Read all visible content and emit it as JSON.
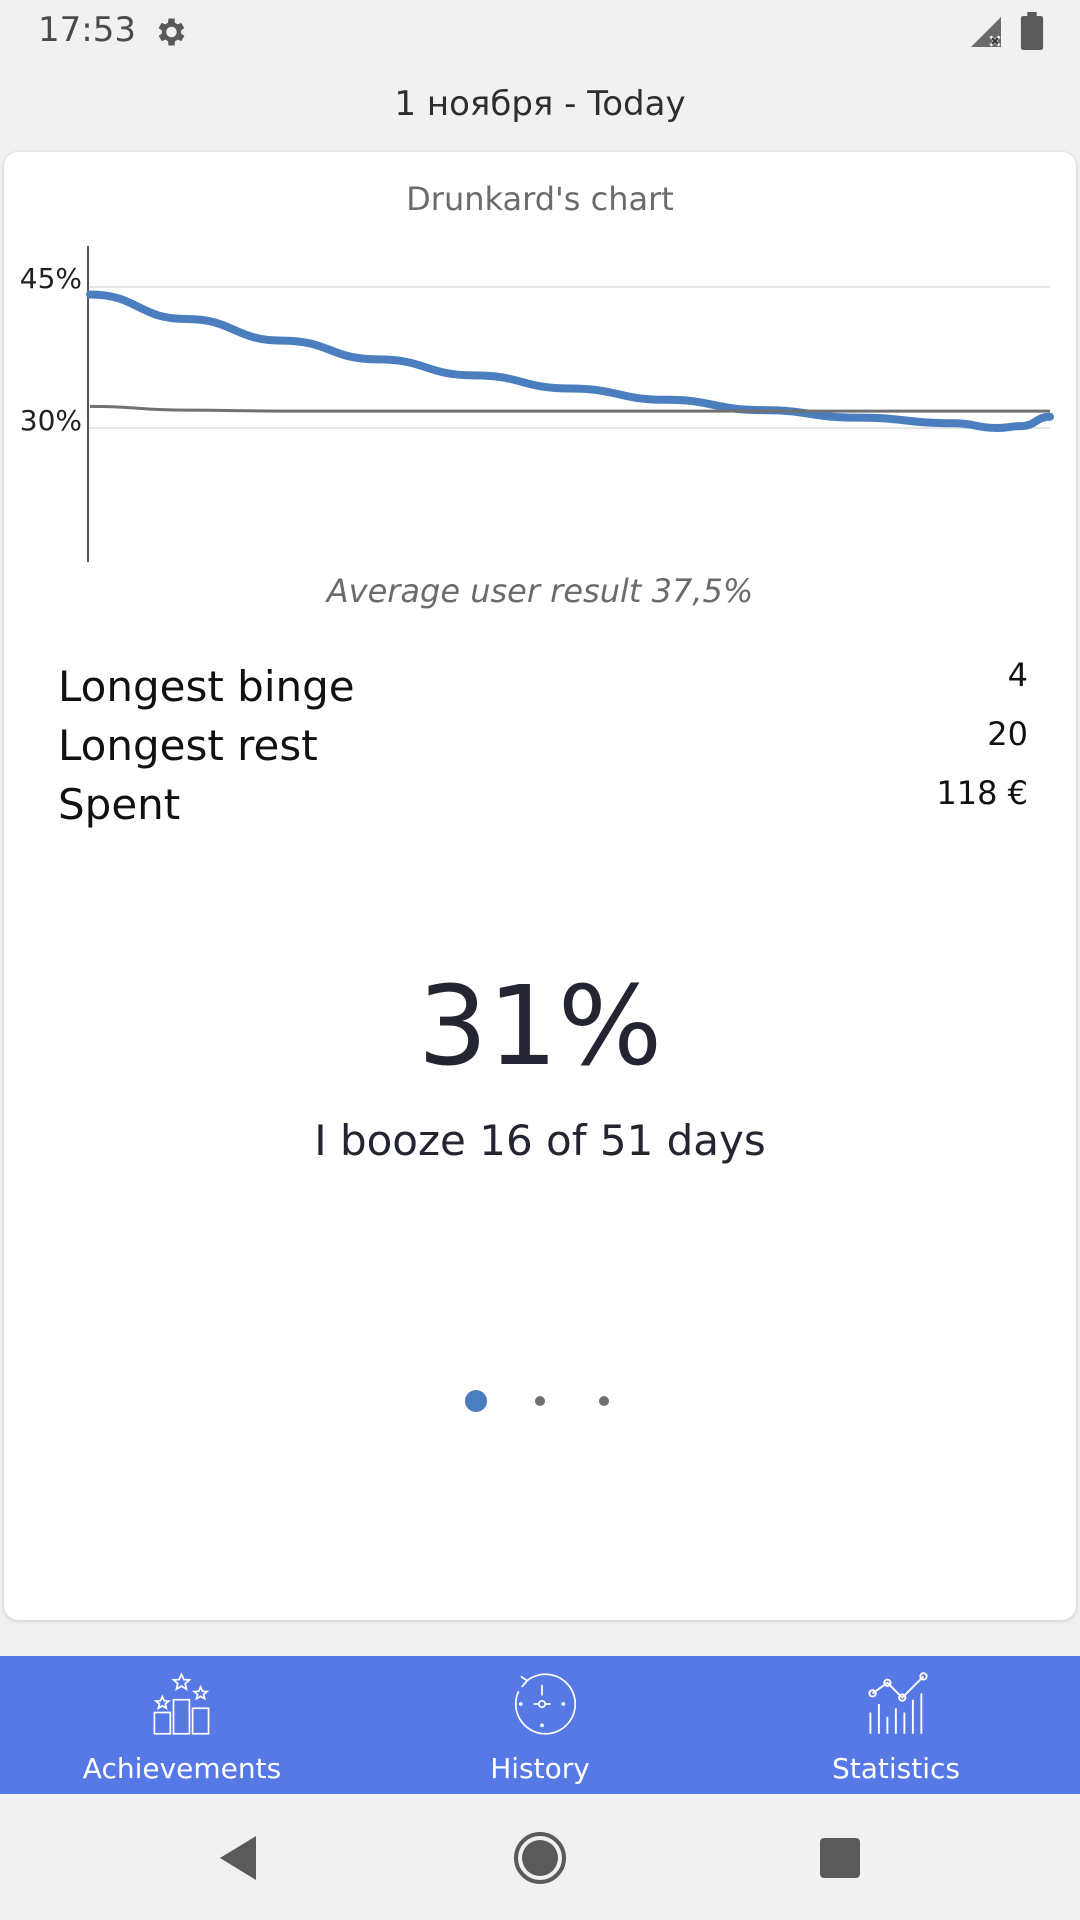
{
  "status_bar": {
    "time": "17:53",
    "icons": [
      "gear-icon",
      "signal-icon",
      "battery-icon"
    ]
  },
  "date_range": "1 ноября - Today",
  "chart_card": {
    "title": "Drunkard's chart",
    "average_text": "Average user result 37,5%"
  },
  "chart_data": {
    "type": "line",
    "title": "Drunkard's chart",
    "ylim": [
      30,
      45
    ],
    "y_ticks": [
      "45%",
      "30%"
    ],
    "x": [
      0,
      0.1,
      0.2,
      0.3,
      0.4,
      0.5,
      0.6,
      0.7,
      0.8,
      0.9,
      0.945,
      0.97,
      1.0
    ],
    "series": [
      {
        "values": [
          44.2,
          41.6,
          39.3,
          37.3,
          35.6,
          34.2,
          33.0,
          31.9,
          31.1,
          30.5,
          30.0,
          30.2,
          31.2
        ],
        "color": "#4a7ebf"
      },
      {
        "values": [
          32.3,
          31.9,
          31.8,
          31.8,
          31.8,
          31.8,
          31.8,
          31.8,
          31.8,
          31.8,
          31.8,
          31.8,
          31.8
        ],
        "color": "#707070"
      }
    ],
    "grid": true
  },
  "stats": [
    {
      "label": "Longest binge",
      "value": "4"
    },
    {
      "label": "Longest rest",
      "value": "20"
    },
    {
      "label": "Spent",
      "value": "118 €"
    }
  ],
  "summary": {
    "percent": "31%",
    "text": "I booze 16 of 51 days"
  },
  "pager": {
    "count": 3,
    "active": 0,
    "active_color": "#4a7ebf"
  },
  "bottom_nav": {
    "background": "#5779e6",
    "items": [
      {
        "label": "Achievements",
        "icon": "achievements-icon"
      },
      {
        "label": "History",
        "icon": "history-icon"
      },
      {
        "label": "Statistics",
        "icon": "statistics-icon"
      }
    ]
  }
}
